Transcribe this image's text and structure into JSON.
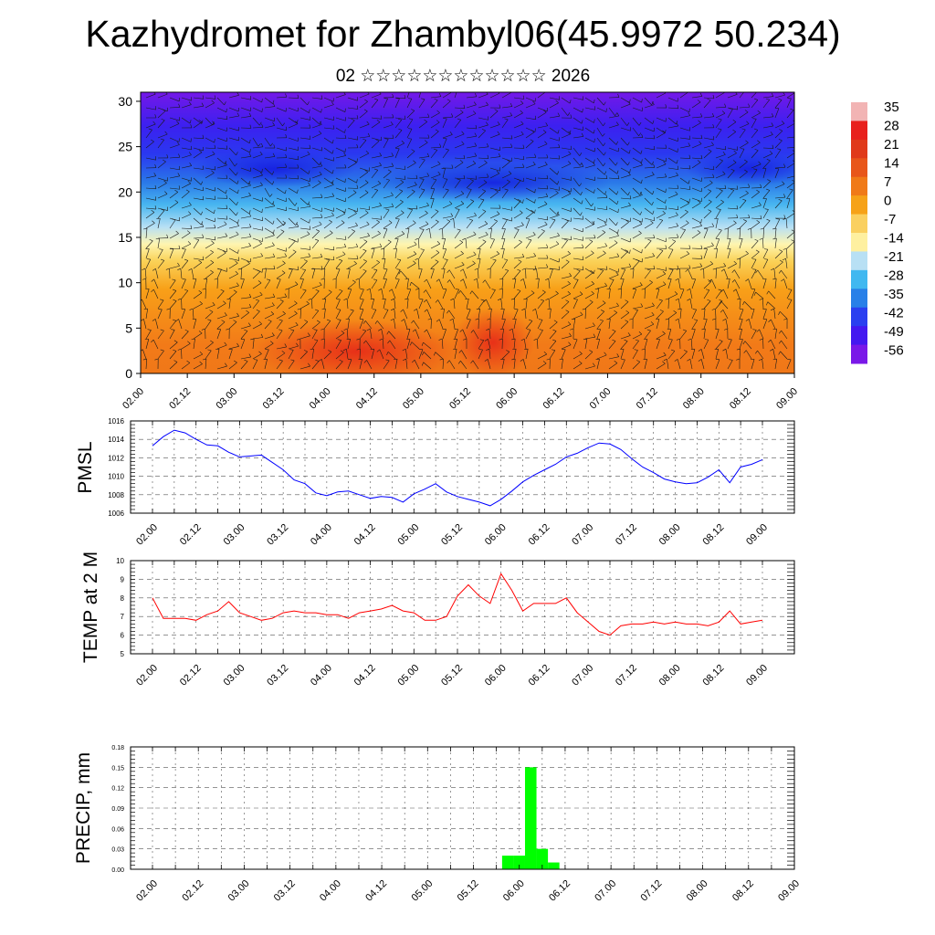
{
  "header": {
    "title": "Kazhydromet for Zhambyl06(45.9972 50.234)",
    "subtitle": "02 ☆☆☆☆☆☆☆☆☆☆☆☆ 2026"
  },
  "colorbar": {
    "labels": [
      "35",
      "28",
      "21",
      "14",
      "7",
      "0",
      "-7",
      "-14",
      "-21",
      "-28",
      "-35",
      "-42",
      "-49",
      "-56"
    ],
    "colors": [
      "#f2b4b4",
      "#e8201c",
      "#e03a1a",
      "#e8561a",
      "#f07a18",
      "#f6a218",
      "#fad060",
      "#fef0a0",
      "#b8e0f4",
      "#40b8f0",
      "#2880e8",
      "#2a3ff0",
      "#4418f0",
      "#7a18e8"
    ]
  },
  "chart_data": [
    {
      "type": "heatmap",
      "title": "",
      "xlabel": "",
      "ylabel": "",
      "x_ticks": [
        "02.00",
        "02.12",
        "03.00",
        "03.12",
        "04.00",
        "04.12",
        "05.00",
        "05.12",
        "06.00",
        "06.12",
        "07.00",
        "07.12",
        "08.00",
        "08.12",
        "09.00"
      ],
      "y_ticks": [
        0,
        5,
        10,
        15,
        20,
        25,
        30
      ],
      "ylim": [
        0,
        31
      ],
      "color_scale": [
        -56,
        35
      ],
      "description_values": {
        "levels": [
          0,
          5,
          10,
          14,
          15,
          20,
          25,
          30
        ],
        "temperature": [
          14,
          10,
          7,
          0,
          -7,
          -28,
          -49,
          -56
        ]
      },
      "overlay": "wind barbs"
    },
    {
      "type": "line",
      "ylabel": "PMSL",
      "x_ticks": [
        "02.00",
        "02.12",
        "03.00",
        "03.12",
        "04.00",
        "04.12",
        "05.00",
        "05.12",
        "06.00",
        "06.12",
        "07.00",
        "07.12",
        "08.00",
        "08.12",
        "09.00"
      ],
      "ylim": [
        1006,
        1016
      ],
      "y_ticks": [
        1006,
        1008,
        1010,
        1012,
        1014,
        1016
      ],
      "color": "#0000ff",
      "series": [
        {
          "values": [
            1013.3,
            1014.3,
            1015.0,
            1014.7,
            1014.0,
            1013.4,
            1013.3,
            1012.6,
            1012.1,
            1012.2,
            1012.3,
            1011.5,
            1010.7,
            1009.6,
            1009.2,
            1008.2,
            1007.9,
            1008.3,
            1008.4,
            1008.0,
            1007.6,
            1007.8,
            1007.7,
            1007.2,
            1008.1,
            1008.6,
            1009.2,
            1008.3,
            1007.8,
            1007.5,
            1007.2,
            1006.8,
            1007.5,
            1008.4,
            1009.4,
            1010.1,
            1010.7,
            1011.3,
            1012.1,
            1012.5,
            1013.1,
            1013.6,
            1013.5,
            1012.9,
            1011.9,
            1011.0,
            1010.4,
            1009.7,
            1009.4,
            1009.2,
            1009.3,
            1009.9,
            1010.7,
            1009.3,
            1011.0,
            1011.3,
            1011.8
          ]
        }
      ]
    },
    {
      "type": "line",
      "ylabel": "TEMP at 2 M",
      "x_ticks": [
        "02.00",
        "02.12",
        "03.00",
        "03.12",
        "04.00",
        "04.12",
        "05.00",
        "05.12",
        "06.00",
        "06.12",
        "07.00",
        "07.12",
        "08.00",
        "08.12",
        "09.00"
      ],
      "ylim": [
        5,
        10
      ],
      "y_ticks": [
        5,
        6,
        7,
        8,
        9,
        10
      ],
      "color": "#ff0000",
      "series": [
        {
          "values": [
            8.0,
            6.9,
            6.9,
            6.9,
            6.8,
            7.1,
            7.3,
            7.8,
            7.2,
            7.0,
            6.8,
            6.9,
            7.2,
            7.3,
            7.2,
            7.2,
            7.1,
            7.1,
            6.9,
            7.2,
            7.3,
            7.4,
            7.6,
            7.3,
            7.2,
            6.8,
            6.8,
            7.0,
            8.1,
            8.7,
            8.1,
            7.7,
            9.3,
            8.4,
            7.3,
            7.7,
            7.7,
            7.7,
            8.0,
            7.2,
            6.7,
            6.2,
            6.0,
            6.5,
            6.6,
            6.6,
            6.7,
            6.6,
            6.7,
            6.6,
            6.6,
            6.5,
            6.7,
            7.3,
            6.6,
            6.7,
            6.8
          ]
        }
      ]
    },
    {
      "type": "bar",
      "ylabel": "PRECIP, mm",
      "x_ticks": [
        "02.00",
        "02.12",
        "03.00",
        "03.12",
        "04.00",
        "04.12",
        "05.00",
        "05.12",
        "06.00",
        "06.12",
        "07.00",
        "07.12",
        "08.00",
        "08.12",
        "09.00"
      ],
      "ylim": [
        0,
        0.18
      ],
      "y_ticks": [
        "0.00",
        "0.03",
        "0.06",
        "0.09",
        "0.12",
        "0.15",
        "0.18"
      ],
      "color": "#00ff00",
      "bars": [
        {
          "x_hours": 93,
          "value": 0.02
        },
        {
          "x_hours": 96,
          "value": 0.02
        },
        {
          "x_hours": 99,
          "value": 0.15
        },
        {
          "x_hours": 102,
          "value": 0.03
        },
        {
          "x_hours": 105,
          "value": 0.01
        }
      ]
    }
  ]
}
